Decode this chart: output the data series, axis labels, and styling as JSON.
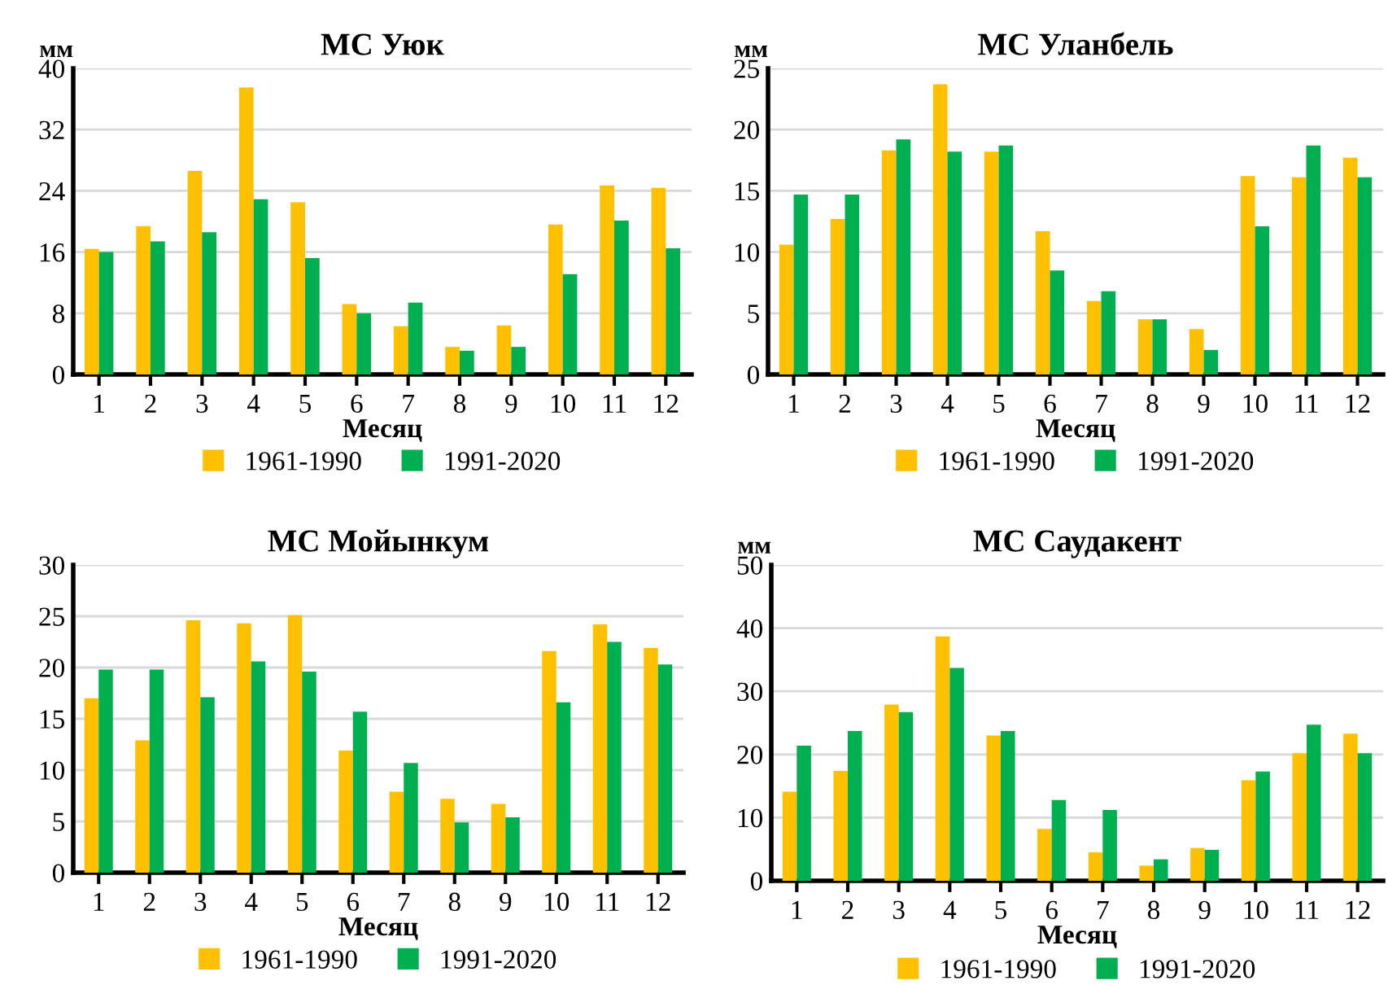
{
  "chart_data": [
    {
      "type": "bar",
      "title": "МС Уюк",
      "ylabel": "мм",
      "xlabel": "Месяц",
      "categories": [
        "1",
        "2",
        "3",
        "4",
        "5",
        "6",
        "7",
        "8",
        "9",
        "10",
        "11",
        "12"
      ],
      "ylim": [
        0,
        40
      ],
      "yticks": [
        0,
        8,
        16,
        24,
        32,
        40
      ],
      "grid": "y",
      "legend": "bottom",
      "series": [
        {
          "name": "1961-1990",
          "color": "#ffc000",
          "values": [
            16.4,
            19.4,
            26.6,
            37.5,
            22.5,
            9.2,
            6.3,
            3.6,
            6.4,
            19.6,
            24.7,
            24.4
          ]
        },
        {
          "name": "1991-2020",
          "color": "#00b050",
          "values": [
            16.0,
            17.4,
            18.6,
            22.9,
            15.2,
            8.0,
            9.4,
            3.1,
            3.6,
            13.1,
            20.1,
            16.5
          ]
        }
      ]
    },
    {
      "type": "bar",
      "title": "МС Уланбель",
      "ylabel": "мм",
      "xlabel": "Месяц",
      "categories": [
        "1",
        "2",
        "3",
        "4",
        "5",
        "6",
        "7",
        "8",
        "9",
        "10",
        "11",
        "12"
      ],
      "ylim": [
        0,
        25
      ],
      "yticks": [
        0,
        5,
        10,
        15,
        20,
        25
      ],
      "grid": "y",
      "legend": "bottom",
      "series": [
        {
          "name": "1961-1990",
          "color": "#ffc000",
          "values": [
            10.6,
            12.7,
            18.3,
            23.7,
            18.2,
            11.7,
            6.0,
            4.5,
            3.7,
            16.2,
            16.1,
            17.7
          ]
        },
        {
          "name": "1991-2020",
          "color": "#00b050",
          "values": [
            14.7,
            14.7,
            19.2,
            18.2,
            18.7,
            8.5,
            6.8,
            4.5,
            2.0,
            12.1,
            18.7,
            16.1
          ]
        }
      ]
    },
    {
      "type": "bar",
      "title": "МС Мойынкум",
      "xlabel": "Месяц",
      "categories": [
        "1",
        "2",
        "3",
        "4",
        "5",
        "6",
        "7",
        "8",
        "9",
        "10",
        "11",
        "12"
      ],
      "ylim": [
        0,
        30
      ],
      "yticks": [
        0,
        5,
        10,
        15,
        20,
        25,
        30
      ],
      "grid": "y",
      "legend": "bottom",
      "series": [
        {
          "name": "1961-1990",
          "color": "#ffc000",
          "values": [
            17.0,
            12.9,
            24.6,
            24.3,
            25.1,
            11.9,
            7.9,
            7.2,
            6.7,
            21.6,
            24.2,
            21.9
          ]
        },
        {
          "name": "1991-2020",
          "color": "#00b050",
          "values": [
            19.8,
            19.8,
            17.1,
            20.6,
            19.6,
            15.7,
            10.7,
            4.9,
            5.4,
            16.6,
            22.5,
            20.3
          ]
        }
      ]
    },
    {
      "type": "bar",
      "title": "МС Саудакент",
      "ylabel": "мм",
      "xlabel": "Месяц",
      "categories": [
        "1",
        "2",
        "3",
        "4",
        "5",
        "6",
        "7",
        "8",
        "9",
        "10",
        "11",
        "12"
      ],
      "ylim": [
        0,
        50
      ],
      "yticks": [
        0,
        10,
        20,
        30,
        40,
        50
      ],
      "grid": "y",
      "legend": "bottom",
      "series": [
        {
          "name": "1961-1990",
          "color": "#ffc000",
          "values": [
            14.1,
            17.4,
            27.9,
            38.7,
            23.0,
            8.2,
            4.5,
            2.4,
            5.2,
            15.9,
            20.2,
            23.3
          ]
        },
        {
          "name": "1991-2020",
          "color": "#00b050",
          "values": [
            21.4,
            23.7,
            26.7,
            33.7,
            23.7,
            12.8,
            11.2,
            3.4,
            4.9,
            17.3,
            24.7,
            20.2
          ]
        }
      ]
    }
  ]
}
